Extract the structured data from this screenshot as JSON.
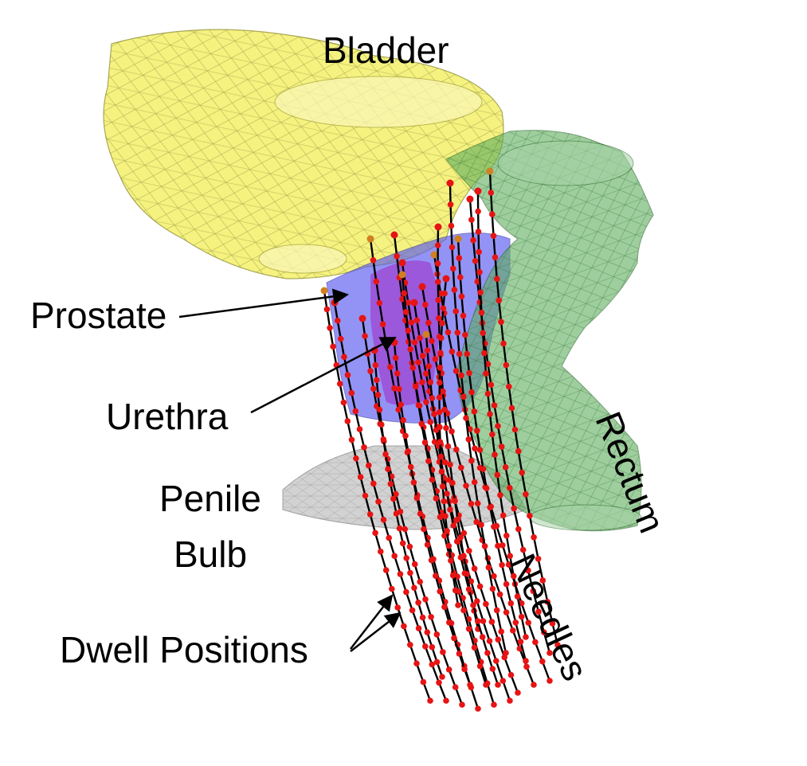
{
  "labels": {
    "bladder": "Bladder",
    "prostate": "Prostate",
    "urethra": "Urethra",
    "penile_bulb_line1": "Penile",
    "penile_bulb_line2": "Bulb",
    "rectum": "Rectum",
    "needles": "Needles",
    "dwell_positions": "Dwell Positions"
  },
  "colors": {
    "bladder_fill": "#f2ef6a",
    "bladder_mesh": "#8c8a35",
    "prostate_fill": "#5a5af0",
    "urethra_fill": "#a030c8",
    "rectum_fill": "#5fae5f",
    "rectum_mesh": "#2f6e2f",
    "penile_bulb_fill": "#c8c8c8",
    "needle_line": "#000000",
    "dwell_dot": "#e61414",
    "arrow": "#000000"
  }
}
